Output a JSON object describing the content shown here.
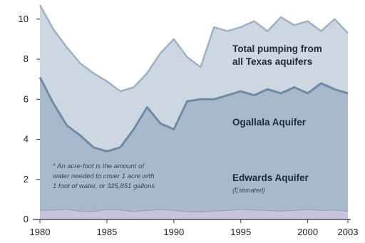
{
  "chart_data": {
    "type": "area",
    "x": [
      1980,
      1981,
      1982,
      1983,
      1984,
      1985,
      1986,
      1987,
      1988,
      1989,
      1990,
      1991,
      1992,
      1993,
      1994,
      1995,
      1996,
      1997,
      1998,
      1999,
      2000,
      2001,
      2002,
      2003
    ],
    "xticks": [
      "1980",
      "1985",
      "1990",
      "1995",
      "2000",
      "2003"
    ],
    "xtick_values": [
      1980,
      1985,
      1990,
      1995,
      2000,
      2003
    ],
    "yticks": [
      "0",
      "2",
      "4",
      "6",
      "8",
      "10"
    ],
    "ylim": [
      0,
      10.6
    ],
    "xlim": [
      1980,
      2003
    ],
    "series": [
      {
        "name": "Total pumping from all Texas aquifers",
        "values": [
          10.7,
          9.5,
          8.6,
          7.8,
          7.3,
          6.9,
          6.4,
          6.6,
          7.3,
          8.3,
          9.0,
          8.1,
          7.6,
          9.6,
          9.4,
          9.6,
          9.9,
          9.4,
          10.1,
          9.7,
          9.9,
          9.4,
          10.0,
          9.3
        ]
      },
      {
        "name": "Ogallala Aquifer",
        "values": [
          7.1,
          5.8,
          4.7,
          4.2,
          3.6,
          3.4,
          3.6,
          4.5,
          5.6,
          4.8,
          4.5,
          5.9,
          6.0,
          6.0,
          6.2,
          6.4,
          6.2,
          6.5,
          6.3,
          6.6,
          6.3,
          6.8,
          6.5,
          6.3
        ]
      },
      {
        "name": "Edwards Aquifer",
        "subtitle": "(Estimated)",
        "values": [
          0.45,
          0.48,
          0.5,
          0.42,
          0.4,
          0.5,
          0.48,
          0.4,
          0.45,
          0.5,
          0.45,
          0.4,
          0.38,
          0.42,
          0.45,
          0.5,
          0.48,
          0.45,
          0.42,
          0.45,
          0.5,
          0.45,
          0.48,
          0.42
        ]
      }
    ],
    "annotation": "* An acre-foot is the amount of water needed to cover 1 acre with 1 foot of water, or 325,851 gallons",
    "annotation_lines": [
      "* An acre-foot is the amount of",
      "water needed to cover 1 acre with",
      "1 foot of water, or 325,851 gallons"
    ],
    "colors": {
      "total_fill": "#cdd7e2",
      "total_line": "#9fb0c2",
      "ogallala_fill": "#a8b9cb",
      "ogallala_line": "#6f8aa6",
      "edwards_fill": "#c8c4dc",
      "edwards_line": "#a59fc6",
      "axis": "#333333"
    }
  }
}
